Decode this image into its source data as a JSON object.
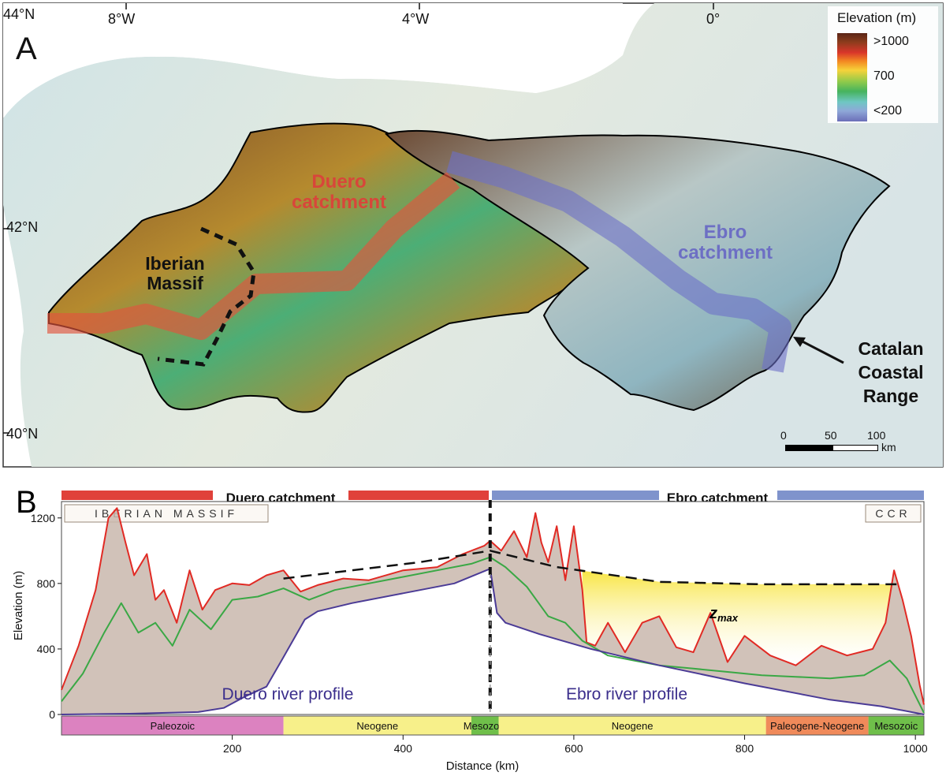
{
  "panel_a": {
    "letter": "A",
    "lat_labels": [
      "44°N",
      "42°N",
      "40°N"
    ],
    "lon_labels": [
      "8°W",
      "4°W",
      "0°"
    ],
    "labels": {
      "duero": [
        "Duero",
        "catchment"
      ],
      "ebro": [
        "Ebro",
        "catchment"
      ],
      "iberian": [
        "Iberian",
        "Massif"
      ],
      "catalan": [
        "Catalan",
        "Coastal",
        "Range"
      ]
    },
    "label_colors": {
      "duero": "#d8463a",
      "ebro": "#6d6fc4",
      "iberian": "#111111",
      "catalan": "#111111"
    },
    "legend": {
      "title": "Elevation (m)",
      "ticks": [
        ">1000",
        "700",
        "<200"
      ]
    },
    "scalebar": {
      "ticks": [
        "0",
        "50",
        "100"
      ],
      "unit": "km"
    }
  },
  "panel_b": {
    "letter": "B",
    "catchments": [
      {
        "label": "Duero catchment",
        "color": "#e0413a"
      },
      {
        "label": "Ebro catchment",
        "color": "#7f93cc"
      }
    ],
    "regions": [
      {
        "label": "IBERIAN MASSIF"
      },
      {
        "label": "CCR"
      }
    ],
    "zmax_label": "z",
    "zmax_subscript": "max",
    "profile_labels": [
      "Duero river profile",
      "Ebro river profile"
    ]
  },
  "chart_data": {
    "type": "line",
    "xlabel": "Distance (km)",
    "ylabel": "Elevation (m)",
    "xlim": [
      0,
      1010
    ],
    "ylim": [
      0,
      1300
    ],
    "xticks": [
      200,
      400,
      600,
      800,
      1000
    ],
    "yticks": [
      0,
      400,
      800,
      1200
    ],
    "divide_x": 502,
    "series": [
      {
        "color": "#e12a24",
        "x": [
          0,
          20,
          40,
          55,
          65,
          75,
          85,
          100,
          110,
          120,
          135,
          150,
          165,
          180,
          200,
          220,
          240,
          260,
          280,
          300,
          330,
          360,
          400,
          440,
          470,
          495,
          502,
          515,
          530,
          545,
          555,
          562,
          570,
          580,
          590,
          600,
          610,
          615,
          625,
          640,
          660,
          680,
          700,
          720,
          740,
          760,
          780,
          800,
          830,
          860,
          890,
          920,
          950,
          965,
          975,
          985,
          995,
          1005,
          1010
        ],
        "y": [
          150,
          420,
          760,
          1200,
          1260,
          1050,
          850,
          980,
          700,
          760,
          560,
          880,
          640,
          760,
          800,
          790,
          850,
          880,
          750,
          790,
          830,
          820,
          880,
          900,
          980,
          1030,
          1060,
          1000,
          1120,
          960,
          1230,
          1050,
          930,
          1150,
          820,
          1150,
          760,
          440,
          420,
          560,
          380,
          560,
          600,
          410,
          380,
          620,
          320,
          480,
          360,
          300,
          420,
          360,
          400,
          560,
          880,
          700,
          480,
          180,
          60
        ]
      },
      {
        "color": "#3aa845",
        "x": [
          0,
          25,
          50,
          70,
          90,
          110,
          130,
          150,
          175,
          200,
          230,
          260,
          290,
          320,
          360,
          400,
          440,
          480,
          502,
          520,
          545,
          570,
          590,
          610,
          640,
          670,
          700,
          740,
          780,
          820,
          860,
          900,
          940,
          970,
          990,
          1010
        ],
        "y": [
          80,
          250,
          500,
          680,
          500,
          560,
          420,
          640,
          520,
          700,
          720,
          770,
          700,
          760,
          800,
          840,
          880,
          920,
          960,
          900,
          780,
          600,
          560,
          450,
          360,
          330,
          300,
          280,
          260,
          240,
          230,
          220,
          240,
          330,
          220,
          10
        ]
      },
      {
        "color": "#4b3b96",
        "x": [
          0,
          80,
          160,
          190,
          215,
          240,
          260,
          285,
          300,
          340,
          400,
          460,
          502,
          510,
          520,
          560,
          620,
          700,
          800,
          900,
          960,
          1000,
          1010
        ],
        "y": [
          0,
          5,
          15,
          40,
          110,
          170,
          350,
          580,
          630,
          680,
          740,
          800,
          890,
          620,
          560,
          490,
          400,
          300,
          190,
          90,
          50,
          10,
          0
        ]
      },
      {
        "color": "#111111",
        "dashed": true,
        "x": [
          260,
          340,
          420,
          502,
          580,
          700,
          820,
          980
        ],
        "y": [
          830,
          880,
          930,
          1000,
          900,
          810,
          795,
          795
        ]
      }
    ]
  },
  "geology": [
    {
      "label": "Paleozoic",
      "start": 0,
      "end": 260,
      "color": "#dc82c0"
    },
    {
      "label": "Neogene",
      "start": 260,
      "end": 480,
      "color": "#f7f08a"
    },
    {
      "label": "Mesozoic",
      "start": 480,
      "end": 512,
      "color": "#6fbf4a"
    },
    {
      "label": "Neogene",
      "start": 512,
      "end": 825,
      "color": "#f7f08a"
    },
    {
      "label": "Paleogene-Neogene",
      "start": 825,
      "end": 945,
      "color": "#f08a5a"
    },
    {
      "label": "Mesozoic",
      "start": 945,
      "end": 1010,
      "color": "#6fbf4a"
    }
  ]
}
